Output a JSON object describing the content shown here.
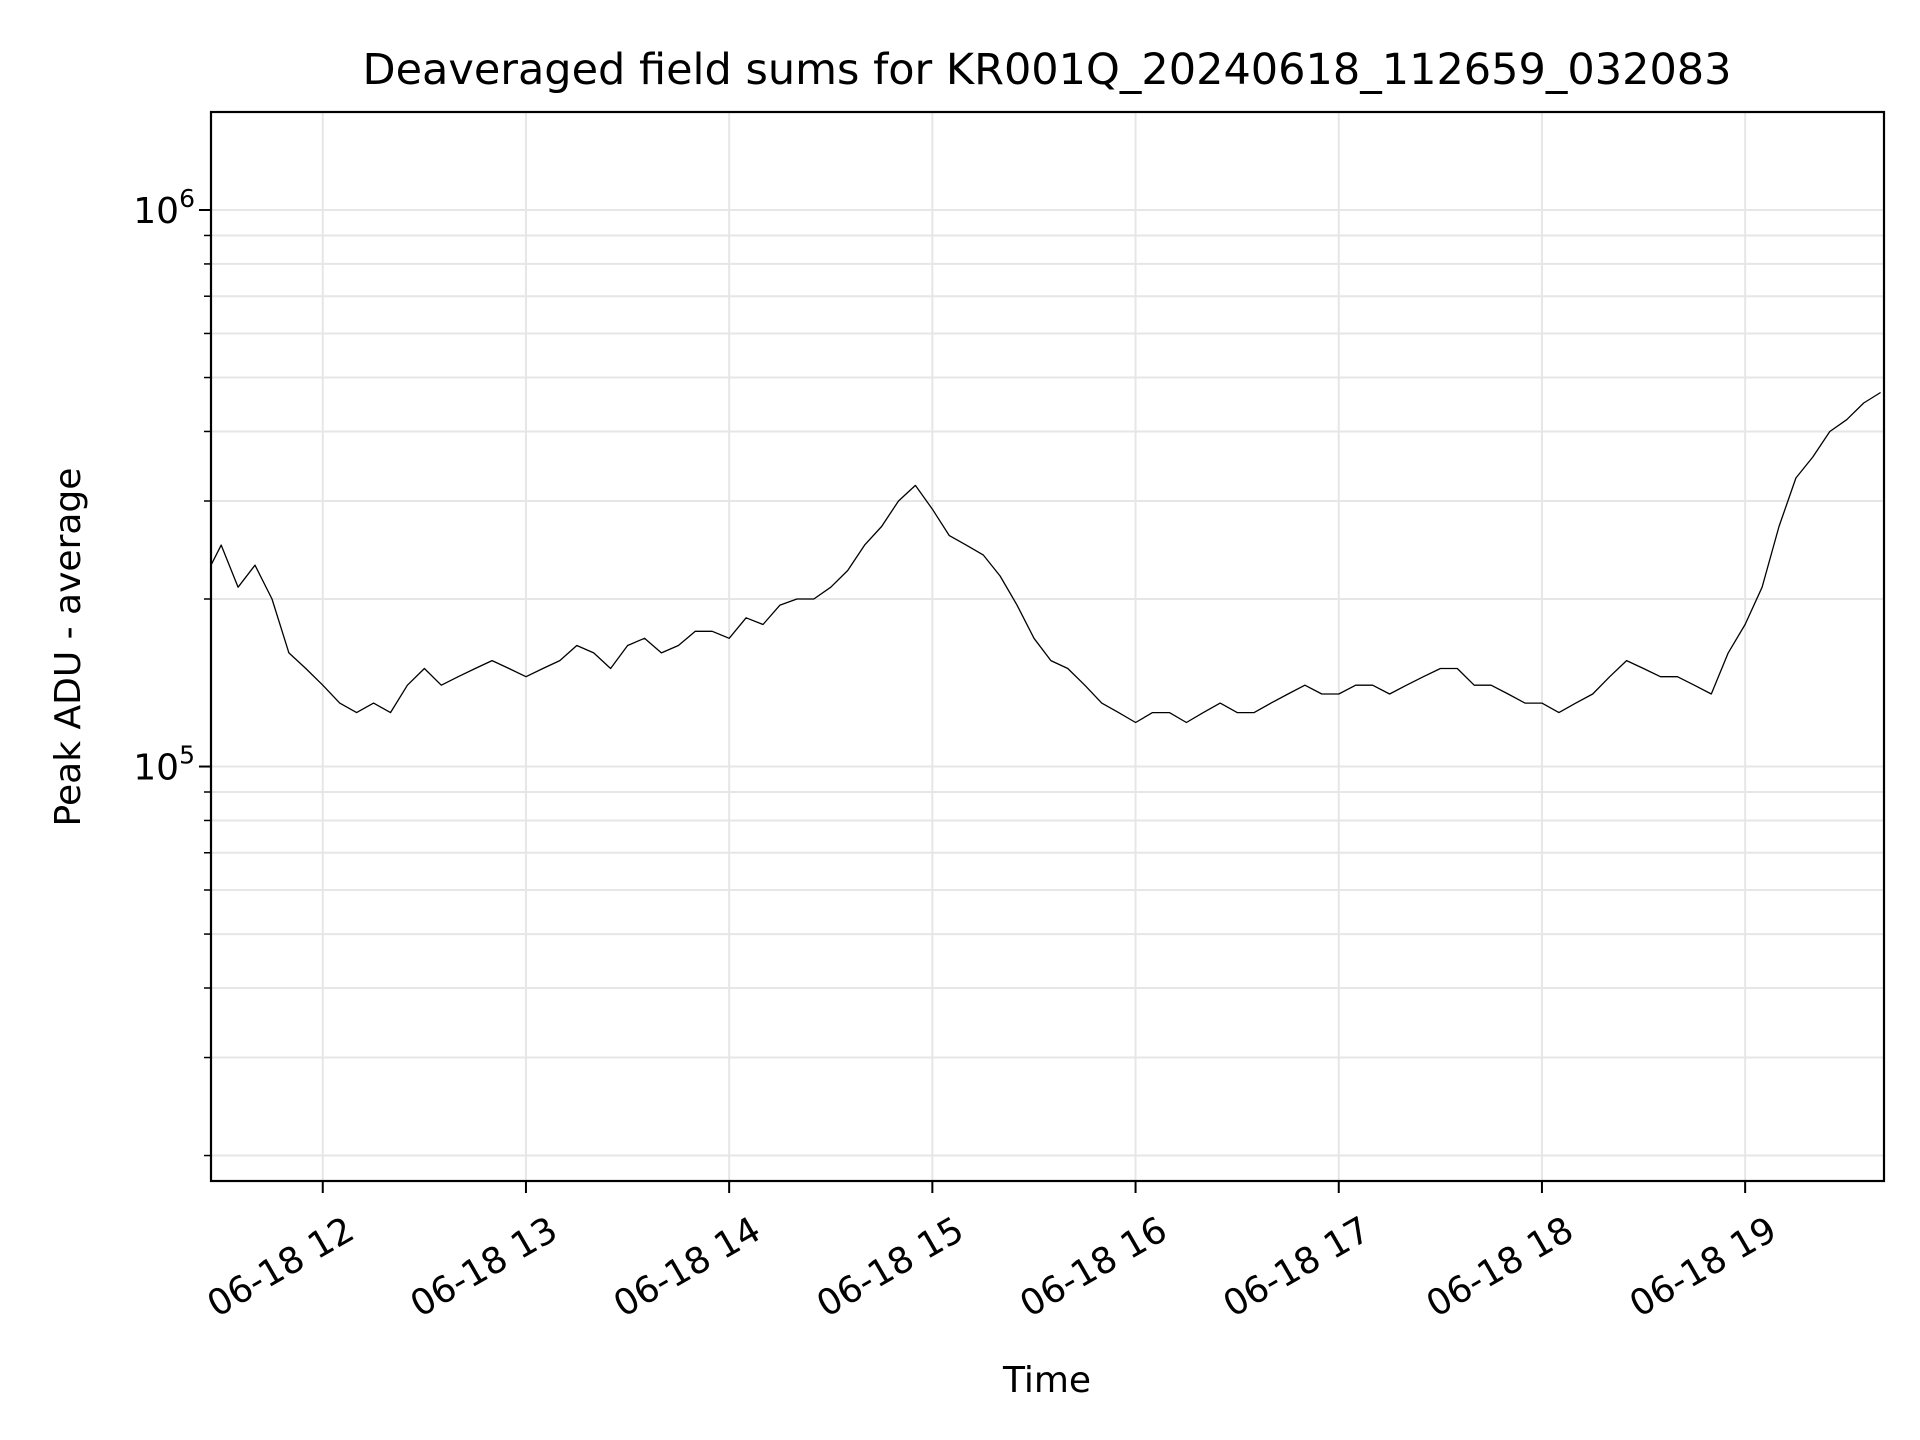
{
  "chart_data": {
    "type": "line",
    "title": "Deaveraged field sums for KR001Q_20240618_112659_032083",
    "xlabel": "Time",
    "ylabel": "Peak ADU - average",
    "yscale": "log",
    "grid": true,
    "line_color": "#000000",
    "xlim": [
      "2024-06-18 11:27",
      "2024-06-18 19:41"
    ],
    "ylim": [
      18000,
      1500000
    ],
    "x_ticks": [
      {
        "value": "2024-06-18 12:00",
        "label": "06-18 12"
      },
      {
        "value": "2024-06-18 13:00",
        "label": "06-18 13"
      },
      {
        "value": "2024-06-18 14:00",
        "label": "06-18 14"
      },
      {
        "value": "2024-06-18 15:00",
        "label": "06-18 15"
      },
      {
        "value": "2024-06-18 16:00",
        "label": "06-18 16"
      },
      {
        "value": "2024-06-18 17:00",
        "label": "06-18 17"
      },
      {
        "value": "2024-06-18 18:00",
        "label": "06-18 18"
      },
      {
        "value": "2024-06-18 19:00",
        "label": "06-18 19"
      }
    ],
    "y_ticks": [
      {
        "value": 100000,
        "base": "10",
        "exp": "5"
      },
      {
        "value": 1000000,
        "base": "10",
        "exp": "6"
      }
    ],
    "series": [
      {
        "x": [
          "2024-06-18 11:27",
          "2024-06-18 11:30",
          "2024-06-18 11:35",
          "2024-06-18 11:40",
          "2024-06-18 11:45",
          "2024-06-18 11:50",
          "2024-06-18 11:55",
          "2024-06-18 12:00",
          "2024-06-18 12:05",
          "2024-06-18 12:10",
          "2024-06-18 12:15",
          "2024-06-18 12:20",
          "2024-06-18 12:25",
          "2024-06-18 12:30",
          "2024-06-18 12:35",
          "2024-06-18 12:40",
          "2024-06-18 12:45",
          "2024-06-18 12:50",
          "2024-06-18 12:55",
          "2024-06-18 13:00",
          "2024-06-18 13:05",
          "2024-06-18 13:10",
          "2024-06-18 13:15",
          "2024-06-18 13:20",
          "2024-06-18 13:25",
          "2024-06-18 13:30",
          "2024-06-18 13:35",
          "2024-06-18 13:40",
          "2024-06-18 13:45",
          "2024-06-18 13:50",
          "2024-06-18 13:55",
          "2024-06-18 14:00",
          "2024-06-18 14:05",
          "2024-06-18 14:10",
          "2024-06-18 14:15",
          "2024-06-18 14:20",
          "2024-06-18 14:25",
          "2024-06-18 14:30",
          "2024-06-18 14:35",
          "2024-06-18 14:40",
          "2024-06-18 14:45",
          "2024-06-18 14:50",
          "2024-06-18 14:55",
          "2024-06-18 15:00",
          "2024-06-18 15:05",
          "2024-06-18 15:10",
          "2024-06-18 15:15",
          "2024-06-18 15:20",
          "2024-06-18 15:25",
          "2024-06-18 15:30",
          "2024-06-18 15:35",
          "2024-06-18 15:40",
          "2024-06-18 15:45",
          "2024-06-18 15:50",
          "2024-06-18 15:55",
          "2024-06-18 16:00",
          "2024-06-18 16:05",
          "2024-06-18 16:10",
          "2024-06-18 16:15",
          "2024-06-18 16:20",
          "2024-06-18 16:25",
          "2024-06-18 16:30",
          "2024-06-18 16:35",
          "2024-06-18 16:40",
          "2024-06-18 16:45",
          "2024-06-18 16:50",
          "2024-06-18 16:55",
          "2024-06-18 17:00",
          "2024-06-18 17:05",
          "2024-06-18 17:10",
          "2024-06-18 17:15",
          "2024-06-18 17:20",
          "2024-06-18 17:25",
          "2024-06-18 17:30",
          "2024-06-18 17:35",
          "2024-06-18 17:40",
          "2024-06-18 17:45",
          "2024-06-18 17:50",
          "2024-06-18 17:55",
          "2024-06-18 18:00",
          "2024-06-18 18:05",
          "2024-06-18 18:10",
          "2024-06-18 18:15",
          "2024-06-18 18:20",
          "2024-06-18 18:25",
          "2024-06-18 18:30",
          "2024-06-18 18:35",
          "2024-06-18 18:40",
          "2024-06-18 18:45",
          "2024-06-18 18:50",
          "2024-06-18 18:55",
          "2024-06-18 19:00",
          "2024-06-18 19:05",
          "2024-06-18 19:10",
          "2024-06-18 19:15",
          "2024-06-18 19:20",
          "2024-06-18 19:25",
          "2024-06-18 19:30",
          "2024-06-18 19:35",
          "2024-06-18 19:40"
        ],
        "y": [
          230000,
          250000,
          210000,
          230000,
          200000,
          160000,
          150000,
          140000,
          130000,
          125000,
          130000,
          125000,
          140000,
          150000,
          140000,
          145000,
          150000,
          155000,
          150000,
          145000,
          150000,
          155000,
          165000,
          160000,
          150000,
          165000,
          170000,
          160000,
          165000,
          175000,
          175000,
          170000,
          185000,
          180000,
          195000,
          200000,
          200000,
          210000,
          225000,
          250000,
          270000,
          300000,
          320000,
          290000,
          260000,
          250000,
          240000,
          220000,
          195000,
          170000,
          155000,
          150000,
          140000,
          130000,
          125000,
          120000,
          125000,
          125000,
          120000,
          125000,
          130000,
          125000,
          125000,
          130000,
          135000,
          140000,
          135000,
          135000,
          140000,
          140000,
          135000,
          140000,
          145000,
          150000,
          150000,
          140000,
          140000,
          135000,
          130000,
          130000,
          125000,
          130000,
          135000,
          145000,
          155000,
          150000,
          145000,
          145000,
          140000,
          135000,
          160000,
          180000,
          210000,
          270000,
          330000,
          360000,
          400000,
          420000,
          450000,
          470000
        ]
      }
    ]
  }
}
